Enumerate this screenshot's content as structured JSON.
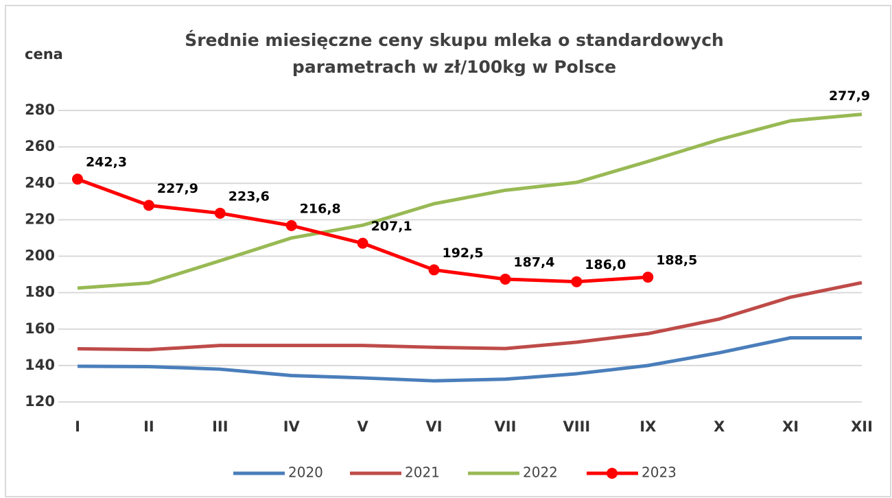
{
  "chart_data": {
    "type": "line",
    "title": [
      "Średnie miesięczne ceny  skupu mleka o standardowych",
      "parametrach  w zł/100kg w Polsce"
    ],
    "y_label": "cena",
    "categories": [
      "I",
      "II",
      "III",
      "IV",
      "V",
      "VI",
      "VII",
      "VIII",
      "IX",
      "X",
      "XI",
      "XII"
    ],
    "ylim": [
      120,
      280
    ],
    "yticks": [
      120,
      140,
      160,
      180,
      200,
      220,
      240,
      260,
      280
    ],
    "grid": true,
    "legend": "bottom",
    "series": [
      {
        "name": "2020",
        "color": "#4a7ebb",
        "values": [
          139.6,
          139.4,
          138,
          134.5,
          133.2,
          131.6,
          132.5,
          135.5,
          140,
          147,
          155.2,
          155.2
        ]
      },
      {
        "name": "2021",
        "color": "#be4b48",
        "values": [
          149.2,
          148.7,
          151,
          151,
          151,
          150,
          149.3,
          152.8,
          157.5,
          165.5,
          177.5,
          185.5
        ]
      },
      {
        "name": "2022",
        "color": "#98b954",
        "values": [
          182.5,
          185.3,
          197.5,
          210,
          217,
          228.8,
          236.2,
          240.5,
          252,
          264,
          274.3,
          277.9
        ],
        "value_labels": [
          null,
          null,
          null,
          null,
          null,
          null,
          null,
          null,
          null,
          null,
          null,
          "277,9"
        ]
      },
      {
        "name": "2023",
        "color": "#ff0000",
        "markers": true,
        "values": [
          242.3,
          227.9,
          223.6,
          216.8,
          207.1,
          192.5,
          187.4,
          186.0,
          188.5,
          null,
          null,
          null
        ],
        "value_labels": [
          "242,3",
          "227,9",
          "223,6",
          "216,8",
          "207,1",
          "192,5",
          "187,4",
          "186,0",
          "188,5",
          null,
          null,
          null
        ]
      }
    ]
  }
}
